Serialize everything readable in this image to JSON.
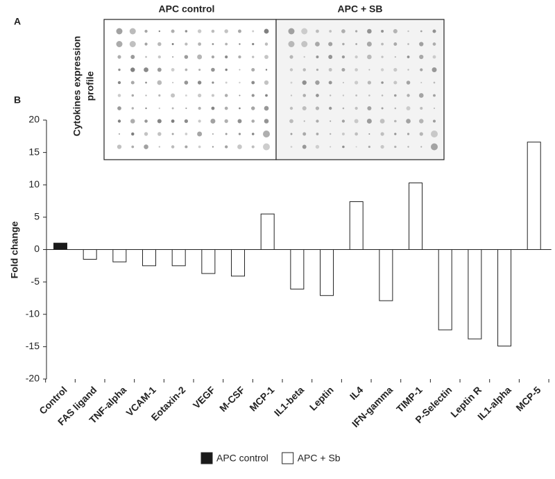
{
  "panel_a": {
    "label": "A",
    "image_titles": [
      "APC control",
      "APC + SB"
    ],
    "side_label": [
      "Cytokines expression",
      "profile"
    ]
  },
  "chart_data": {
    "type": "bar",
    "panel_label": "B",
    "y_label": "Fold change",
    "categories": [
      "Control",
      "FAS ligand",
      "TNF-alpha",
      "VCAM-1",
      "Eotaxin-2",
      "VEGF",
      "M-CSF",
      "MCP-1",
      "IL1-beta",
      "Leptin",
      "IL4",
      "IFN-gamma",
      "TIMP-1",
      "P-Selectin",
      "Leptin R",
      "IL1-alpha",
      "MCP-5"
    ],
    "series": [
      {
        "name": "APC control",
        "color": "#1a1a1a",
        "values": [
          1,
          null,
          null,
          null,
          null,
          null,
          null,
          null,
          null,
          null,
          null,
          null,
          null,
          null,
          null,
          null,
          null
        ]
      },
      {
        "name": "APC + Sb",
        "color": "#ffffff",
        "values": [
          null,
          -1.5,
          -1.9,
          -2.5,
          -2.5,
          -3.7,
          -4.1,
          5.5,
          -6.1,
          -7.1,
          7.4,
          -7.9,
          10.3,
          -12.4,
          -13.8,
          -14.9,
          16.6
        ]
      }
    ],
    "ylim": [
      -20,
      20
    ],
    "yticks": [
      20,
      15,
      10,
      5,
      0,
      -5,
      -10,
      -15,
      -20
    ]
  }
}
